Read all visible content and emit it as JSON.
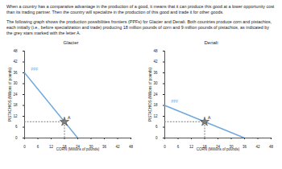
{
  "paragraphs": [
    "When a country has a comparative advantage in the production of a good, it means that it can produce this good at a lower opportunity cost than its trading partner. Then the country will specialize in the production of this good and trade it for other goods.",
    "The following graph shows the production possibilities frontiers (PPFs) for Glacier and Denali. Both countries produce corn and pistachios, each initially (i.e., before specialization and trade) producing 18 million pounds of corn and 9 million pounds of pistachios, as indicated by the grey stars marked with the letter A."
  ],
  "chart_data": [
    {
      "type": "line",
      "title": "Glacier",
      "x_label": "CORN (Millions of pounds)",
      "y_label": "PISTACHIOS (Millions of pounds)",
      "xlim": [
        0,
        48
      ],
      "ylim": [
        0,
        48
      ],
      "xticks": [
        0,
        6,
        12,
        18,
        24,
        30,
        36,
        42,
        48
      ],
      "yticks": [
        0,
        6,
        12,
        18,
        24,
        30,
        36,
        42,
        48
      ],
      "grid": false,
      "series": [
        {
          "name": "PPF",
          "type": "line",
          "color": "#6fa8dc",
          "x": [
            0,
            24
          ],
          "values": [
            36,
            0
          ]
        },
        {
          "name": "A",
          "type": "scatter",
          "marker": "star",
          "color": "#7f7f7f",
          "x": [
            18
          ],
          "values": [
            9
          ]
        }
      ]
    },
    {
      "type": "line",
      "title": "Denali",
      "x_label": "CORN (Millions of pounds)",
      "y_label": "PISTACHIOS (Millions of pounds)",
      "xlim": [
        0,
        48
      ],
      "ylim": [
        0,
        48
      ],
      "xticks": [
        0,
        6,
        12,
        18,
        24,
        30,
        36,
        42,
        48
      ],
      "yticks": [
        0,
        6,
        12,
        18,
        24,
        30,
        36,
        42,
        48
      ],
      "grid": false,
      "series": [
        {
          "name": "PPF",
          "type": "line",
          "color": "#6fa8dc",
          "x": [
            0,
            36
          ],
          "values": [
            18,
            0
          ]
        },
        {
          "name": "A",
          "type": "scatter",
          "marker": "star",
          "color": "#7f7f7f",
          "x": [
            18
          ],
          "values": [
            9
          ]
        }
      ]
    }
  ]
}
